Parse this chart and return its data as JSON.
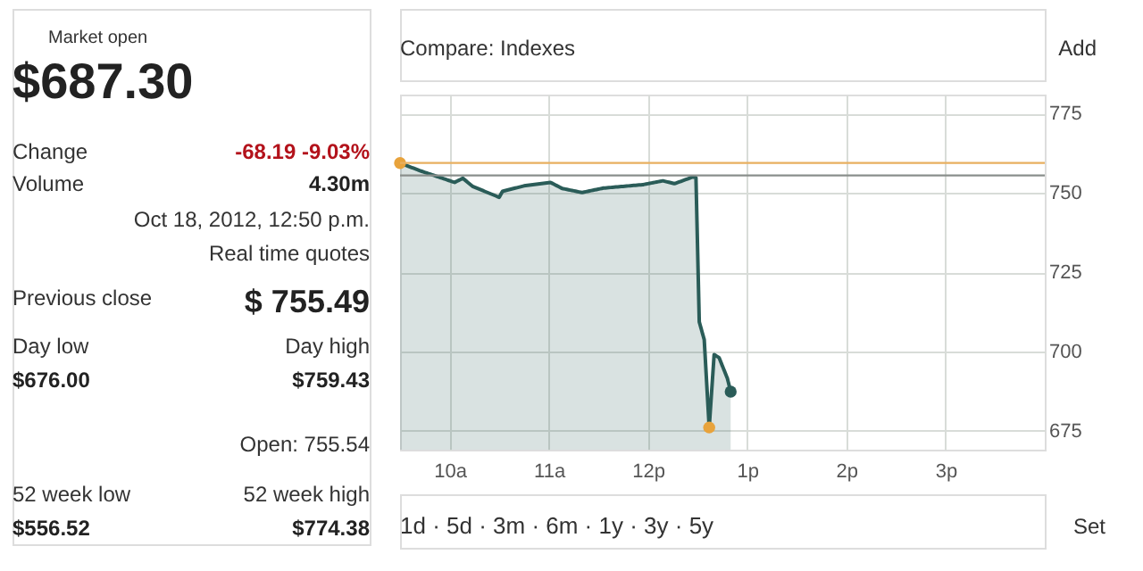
{
  "chart_data": {
    "type": "area",
    "x": [
      "2012-10-18T09:30",
      "2012-10-18T09:42",
      "2012-10-18T10:03",
      "2012-10-18T10:08",
      "2012-10-18T10:14",
      "2012-10-18T10:30",
      "2012-10-18T10:32",
      "2012-10-18T10:45",
      "2012-10-18T11:01",
      "2012-10-18T11:08",
      "2012-10-18T11:20",
      "2012-10-18T11:33",
      "2012-10-18T11:44",
      "2012-10-18T11:57",
      "2012-10-18T12:09",
      "2012-10-18T12:16",
      "2012-10-18T12:27",
      "2012-10-18T12:29",
      "2012-10-18T12:31",
      "2012-10-18T12:34",
      "2012-10-18T12:37",
      "2012-10-18T12:40",
      "2012-10-18T12:43",
      "2012-10-18T12:48",
      "2012-10-18T12:50"
    ],
    "series": [
      {
        "color": "#2a5c58",
        "values": [
          759.4,
          757.0,
          753.3,
          754.6,
          752.0,
          748.6,
          750.5,
          752.2,
          753.3,
          751.4,
          750.1,
          751.5,
          752.0,
          752.6,
          753.8,
          752.9,
          755.0,
          754.8,
          709.3,
          703.7,
          676.0,
          699.0,
          698.0,
          691.5,
          687.3
        ]
      },
      {
        "type": "scatter",
        "x": [
          "2012-10-18T09:30",
          "2012-10-18T12:37",
          "2012-10-18T12:50"
        ],
        "values": [
          759.4,
          676.0,
          687.3
        ],
        "colors": [
          "#e8a33c",
          "#e8a33c",
          "#2a5c58"
        ],
        "marker": "circle"
      }
    ],
    "xlim": [
      "2012-10-18T09:30",
      "2012-10-18T16:00"
    ],
    "xticks": [
      {
        "value": "2012-10-18T10:00",
        "label": "10a"
      },
      {
        "value": "2012-10-18T11:00",
        "label": "11a"
      },
      {
        "value": "2012-10-18T12:00",
        "label": "12p"
      },
      {
        "value": "2012-10-18T13:00",
        "label": "1p"
      },
      {
        "value": "2012-10-18T14:00",
        "label": "2p"
      },
      {
        "value": "2012-10-18T15:00",
        "label": "3p"
      }
    ],
    "ylim": [
      669,
      781
    ],
    "yticks": [
      675,
      700,
      725,
      750,
      775
    ],
    "grid": true,
    "ref_lines": [
      {
        "axis": "y",
        "value": 759.43,
        "color": "#e8b060"
      },
      {
        "axis": "y",
        "value": 755.49,
        "color": "#8a8f8c"
      }
    ],
    "annotations": [
      "Market open",
      "$687.30",
      "Change",
      "-68.19 -9.03%",
      "Volume",
      "4.30m",
      "Oct 18, 2012, 12:50 p.m.",
      "Real time quotes",
      "Previous close",
      "$ 755.49",
      "Day low",
      "Day high",
      "$676.00",
      "$759.43",
      "Open: 755.54",
      "52 week low",
      "52 week high",
      "$556.52",
      "$774.38",
      "Compare: Indexes",
      "Add",
      "1d · 5d · 3m · 6m · 1y · 3y · 5y",
      "Set"
    ]
  }
}
